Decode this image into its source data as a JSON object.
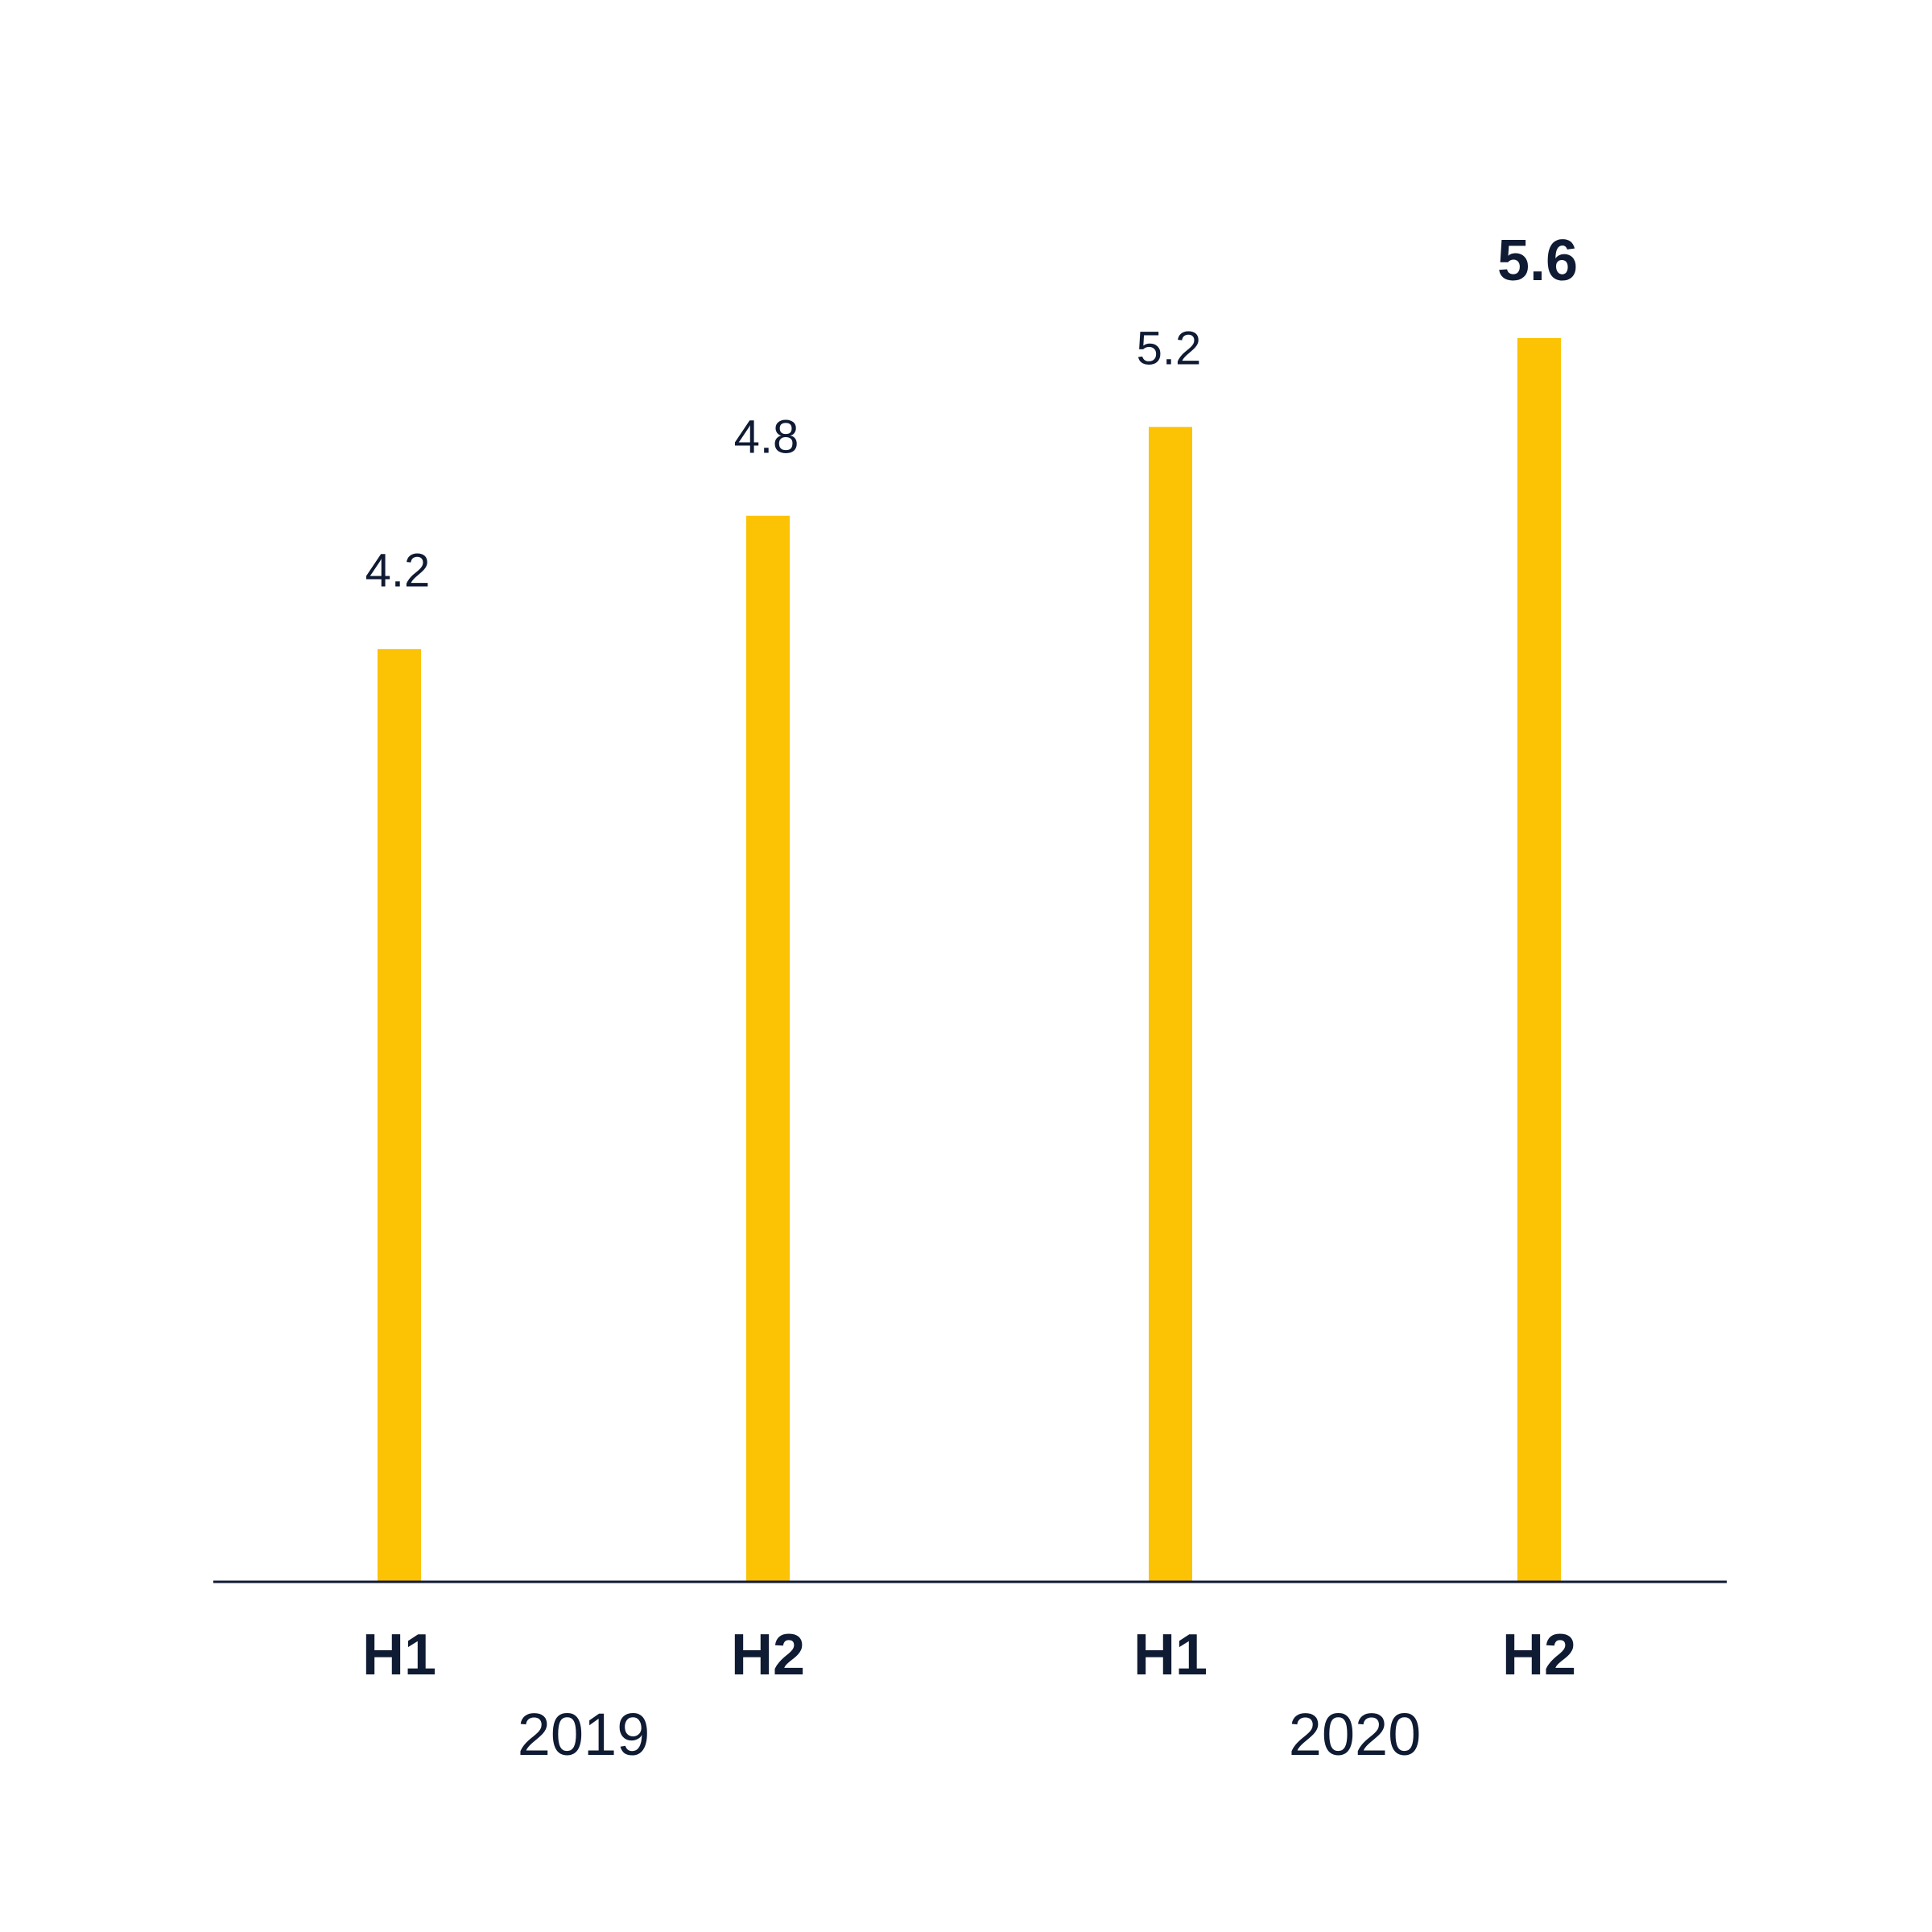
{
  "chart_data": {
    "type": "bar",
    "categories": [
      "H1",
      "H2",
      "H1",
      "H2"
    ],
    "groups": [
      {
        "label": "2019",
        "categories": [
          0,
          1
        ]
      },
      {
        "label": "2020",
        "categories": [
          2,
          3
        ]
      }
    ],
    "values": [
      4.2,
      4.8,
      5.2,
      5.6
    ],
    "value_labels": [
      "4.2",
      "4.8",
      "5.2",
      "5.6"
    ],
    "highlight_index": 3,
    "title": "",
    "xlabel": "",
    "ylabel": "",
    "ylim": [
      0,
      5.6
    ],
    "grid": false,
    "legend": "none",
    "colors": {
      "bar": "#FCC204",
      "text": "#0F1A33",
      "axis": "#0F1A33",
      "background": "#FFFFFF"
    }
  }
}
